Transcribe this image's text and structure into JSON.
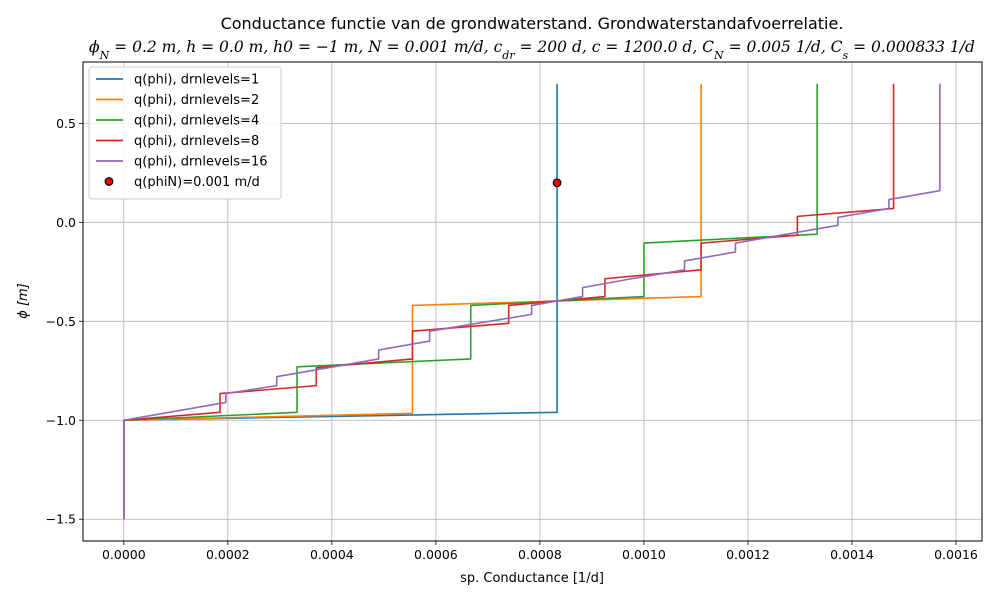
{
  "chart_data": {
    "type": "line",
    "title": "Conductance functie van de grondwaterstand. Grondwaterstandafvoerrelatie.",
    "subtitle": "ϕ_N = 0.2 m, h = 0.0 m, h0 = −1 m, N = 0.001 m/d, c_dr = 200 d, c = 1200.0 d, C_N = 0.005 1/d, C_s = 0.000833 1/d",
    "subtitle_parts": [
      {
        "t": "ϕ"
      },
      {
        "t": "N",
        "sub": true
      },
      {
        "t": " = 0.2 m,  h = 0.0 m,  h0 = −1 m,  N = 0.001 m/d,  c"
      },
      {
        "t": "dr",
        "sub": true
      },
      {
        "t": " = 200 d,  c = 1200.0 d,  C"
      },
      {
        "t": "N",
        "sub": true
      },
      {
        "t": " = 0.005 1/d,  C"
      },
      {
        "t": "s",
        "sub": true
      },
      {
        "t": " = 0.000833 1/d"
      }
    ],
    "xlabel": "sp. Conductance [1/d]",
    "ylabel": "ϕ [m]",
    "xlim": [
      -7.85e-05,
      0.00165
    ],
    "ylim": [
      -1.61,
      0.81
    ],
    "xticks": [
      0.0,
      0.0002,
      0.0004,
      0.0006,
      0.0008,
      0.001,
      0.0012,
      0.0014,
      0.0016
    ],
    "xtick_labels": [
      "0.0000",
      "0.0002",
      "0.0004",
      "0.0006",
      "0.0008",
      "0.0010",
      "0.0012",
      "0.0014",
      "0.0016"
    ],
    "yticks": [
      -1.5,
      -1.0,
      -0.5,
      0.0,
      0.5
    ],
    "ytick_labels": [
      "−1.5",
      "−1.0",
      "−0.5",
      "0.0",
      "0.5"
    ],
    "grid": true,
    "legend_position": "top-left",
    "series": [
      {
        "name": "q(phi), drnlevels=1",
        "color": "#1f77b4",
        "points": [
          [
            0,
            -1.5
          ],
          [
            0,
            -1.0
          ],
          [
            0.000833,
            -0.96
          ],
          [
            0.000833,
            0.7
          ]
        ]
      },
      {
        "name": "q(phi), drnlevels=2",
        "color": "#ff7f0e",
        "points": [
          [
            0,
            -1.5
          ],
          [
            0,
            -1.0
          ],
          [
            0.000555,
            -0.965
          ],
          [
            0.000555,
            -0.42
          ],
          [
            0.00111,
            -0.375
          ],
          [
            0.00111,
            0.7
          ]
        ]
      },
      {
        "name": "q(phi), drnlevels=4",
        "color": "#2ca02c",
        "points": [
          [
            0,
            -1.5
          ],
          [
            0,
            -1.0
          ],
          [
            0.000333,
            -0.96
          ],
          [
            0.000333,
            -0.73
          ],
          [
            0.000667,
            -0.69
          ],
          [
            0.000667,
            -0.42
          ],
          [
            0.001,
            -0.375
          ],
          [
            0.001,
            -0.105
          ],
          [
            0.001333,
            -0.06
          ],
          [
            0.001333,
            0.7
          ]
        ]
      },
      {
        "name": "q(phi), drnlevels=8",
        "color": "#d62728",
        "points": [
          [
            0,
            -1.5
          ],
          [
            0,
            -1.0
          ],
          [
            0.000185,
            -0.96
          ],
          [
            0.000185,
            -0.865
          ],
          [
            0.00037,
            -0.825
          ],
          [
            0.00037,
            -0.735
          ],
          [
            0.000555,
            -0.69
          ],
          [
            0.000555,
            -0.55
          ],
          [
            0.00074,
            -0.51
          ],
          [
            0.00074,
            -0.42
          ],
          [
            0.000925,
            -0.375
          ],
          [
            0.000925,
            -0.285
          ],
          [
            0.00111,
            -0.24
          ],
          [
            0.00111,
            -0.105
          ],
          [
            0.001295,
            -0.065
          ],
          [
            0.001295,
            0.03
          ],
          [
            0.00148,
            0.07
          ],
          [
            0.00148,
            0.7
          ]
        ]
      },
      {
        "name": "q(phi), drnlevels=16",
        "color": "#9467bd",
        "points": [
          [
            0,
            -1.5
          ],
          [
            0,
            -1.0
          ],
          [
            0.000196,
            -0.91
          ],
          [
            0.000196,
            -0.865
          ],
          [
            0.000294,
            -0.825
          ],
          [
            0.000294,
            -0.78
          ],
          [
            0.000392,
            -0.735
          ],
          [
            0.000392,
            -0.735
          ],
          [
            0.00049,
            -0.69
          ],
          [
            0.00049,
            -0.645
          ],
          [
            0.000588,
            -0.6
          ],
          [
            0.000588,
            -0.55
          ],
          [
            0.000784,
            -0.465
          ],
          [
            0.000784,
            -0.42
          ],
          [
            0.000882,
            -0.375
          ],
          [
            0.000882,
            -0.33
          ],
          [
            0.000976,
            -0.285
          ],
          [
            0.000976,
            -0.285
          ],
          [
            0.001078,
            -0.24
          ],
          [
            0.001078,
            -0.195
          ],
          [
            0.001176,
            -0.15
          ],
          [
            0.001176,
            -0.105
          ],
          [
            0.001373,
            -0.015
          ],
          [
            0.001373,
            0.025
          ],
          [
            0.001471,
            0.07
          ],
          [
            0.001471,
            0.115
          ],
          [
            0.001569,
            0.16
          ],
          [
            0.001569,
            0.7
          ]
        ]
      }
    ],
    "marker": {
      "name": "q(phiN)=0.001 m/d",
      "x": 0.000833,
      "y": 0.2,
      "face_color": "#ff0000",
      "edge_color": "#000000"
    }
  }
}
